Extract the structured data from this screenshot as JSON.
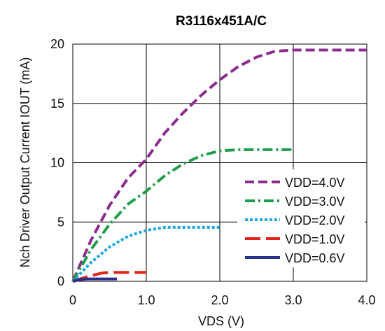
{
  "chart_data": {
    "type": "line",
    "title": "R3116x451A/C",
    "ylabel": "Nch Driver Output Current IOUT (mA)",
    "xlabel": "VDS (V)",
    "xlim": [
      0,
      4
    ],
    "ylim": [
      0,
      20
    ],
    "xticks": [
      "0",
      "1.0",
      "2.0",
      "3.0",
      "4.0"
    ],
    "yticks": [
      "0",
      "5",
      "10",
      "15",
      "20"
    ],
    "grid": true,
    "legend_position": "bottom-right",
    "series": [
      {
        "name": "VDD=4.0V",
        "color": "#8B2C8F",
        "dash": "dashed",
        "x": [
          0,
          0.25,
          0.5,
          0.75,
          1.0,
          1.25,
          1.5,
          1.75,
          2.0,
          2.25,
          2.5,
          2.75,
          3.0,
          3.5,
          4.0
        ],
        "y": [
          0,
          3.5,
          6.4,
          8.7,
          10.3,
          12.5,
          14.2,
          15.7,
          17.0,
          18.1,
          18.9,
          19.4,
          19.5,
          19.5,
          19.5
        ]
      },
      {
        "name": "VDD=3.0V",
        "color": "#1E9E4A",
        "dash": "dashdot",
        "x": [
          0,
          0.25,
          0.5,
          0.75,
          1.0,
          1.25,
          1.5,
          1.75,
          2.0,
          2.25,
          2.5,
          3.0
        ],
        "y": [
          0,
          2.7,
          4.8,
          6.5,
          7.6,
          8.9,
          9.9,
          10.6,
          11.0,
          11.1,
          11.1,
          11.1
        ]
      },
      {
        "name": "VDD=2.0V",
        "color": "#1BA7E3",
        "dash": "dotted",
        "x": [
          0,
          0.25,
          0.5,
          0.75,
          1.0,
          1.25,
          1.5,
          2.0
        ],
        "y": [
          0,
          1.6,
          2.9,
          3.8,
          4.3,
          4.55,
          4.55,
          4.55
        ]
      },
      {
        "name": "VDD=1.0V",
        "color": "#E2231A",
        "dash": "longdash",
        "x": [
          0,
          0.2,
          0.4,
          0.5,
          0.6,
          1.0
        ],
        "y": [
          0,
          0.4,
          0.7,
          0.75,
          0.75,
          0.75
        ]
      },
      {
        "name": "VDD=0.6V",
        "color": "#2B2F8C",
        "dash": "solid",
        "x": [
          0,
          0.1,
          0.2,
          0.6
        ],
        "y": [
          0,
          0.15,
          0.2,
          0.2
        ]
      }
    ]
  }
}
